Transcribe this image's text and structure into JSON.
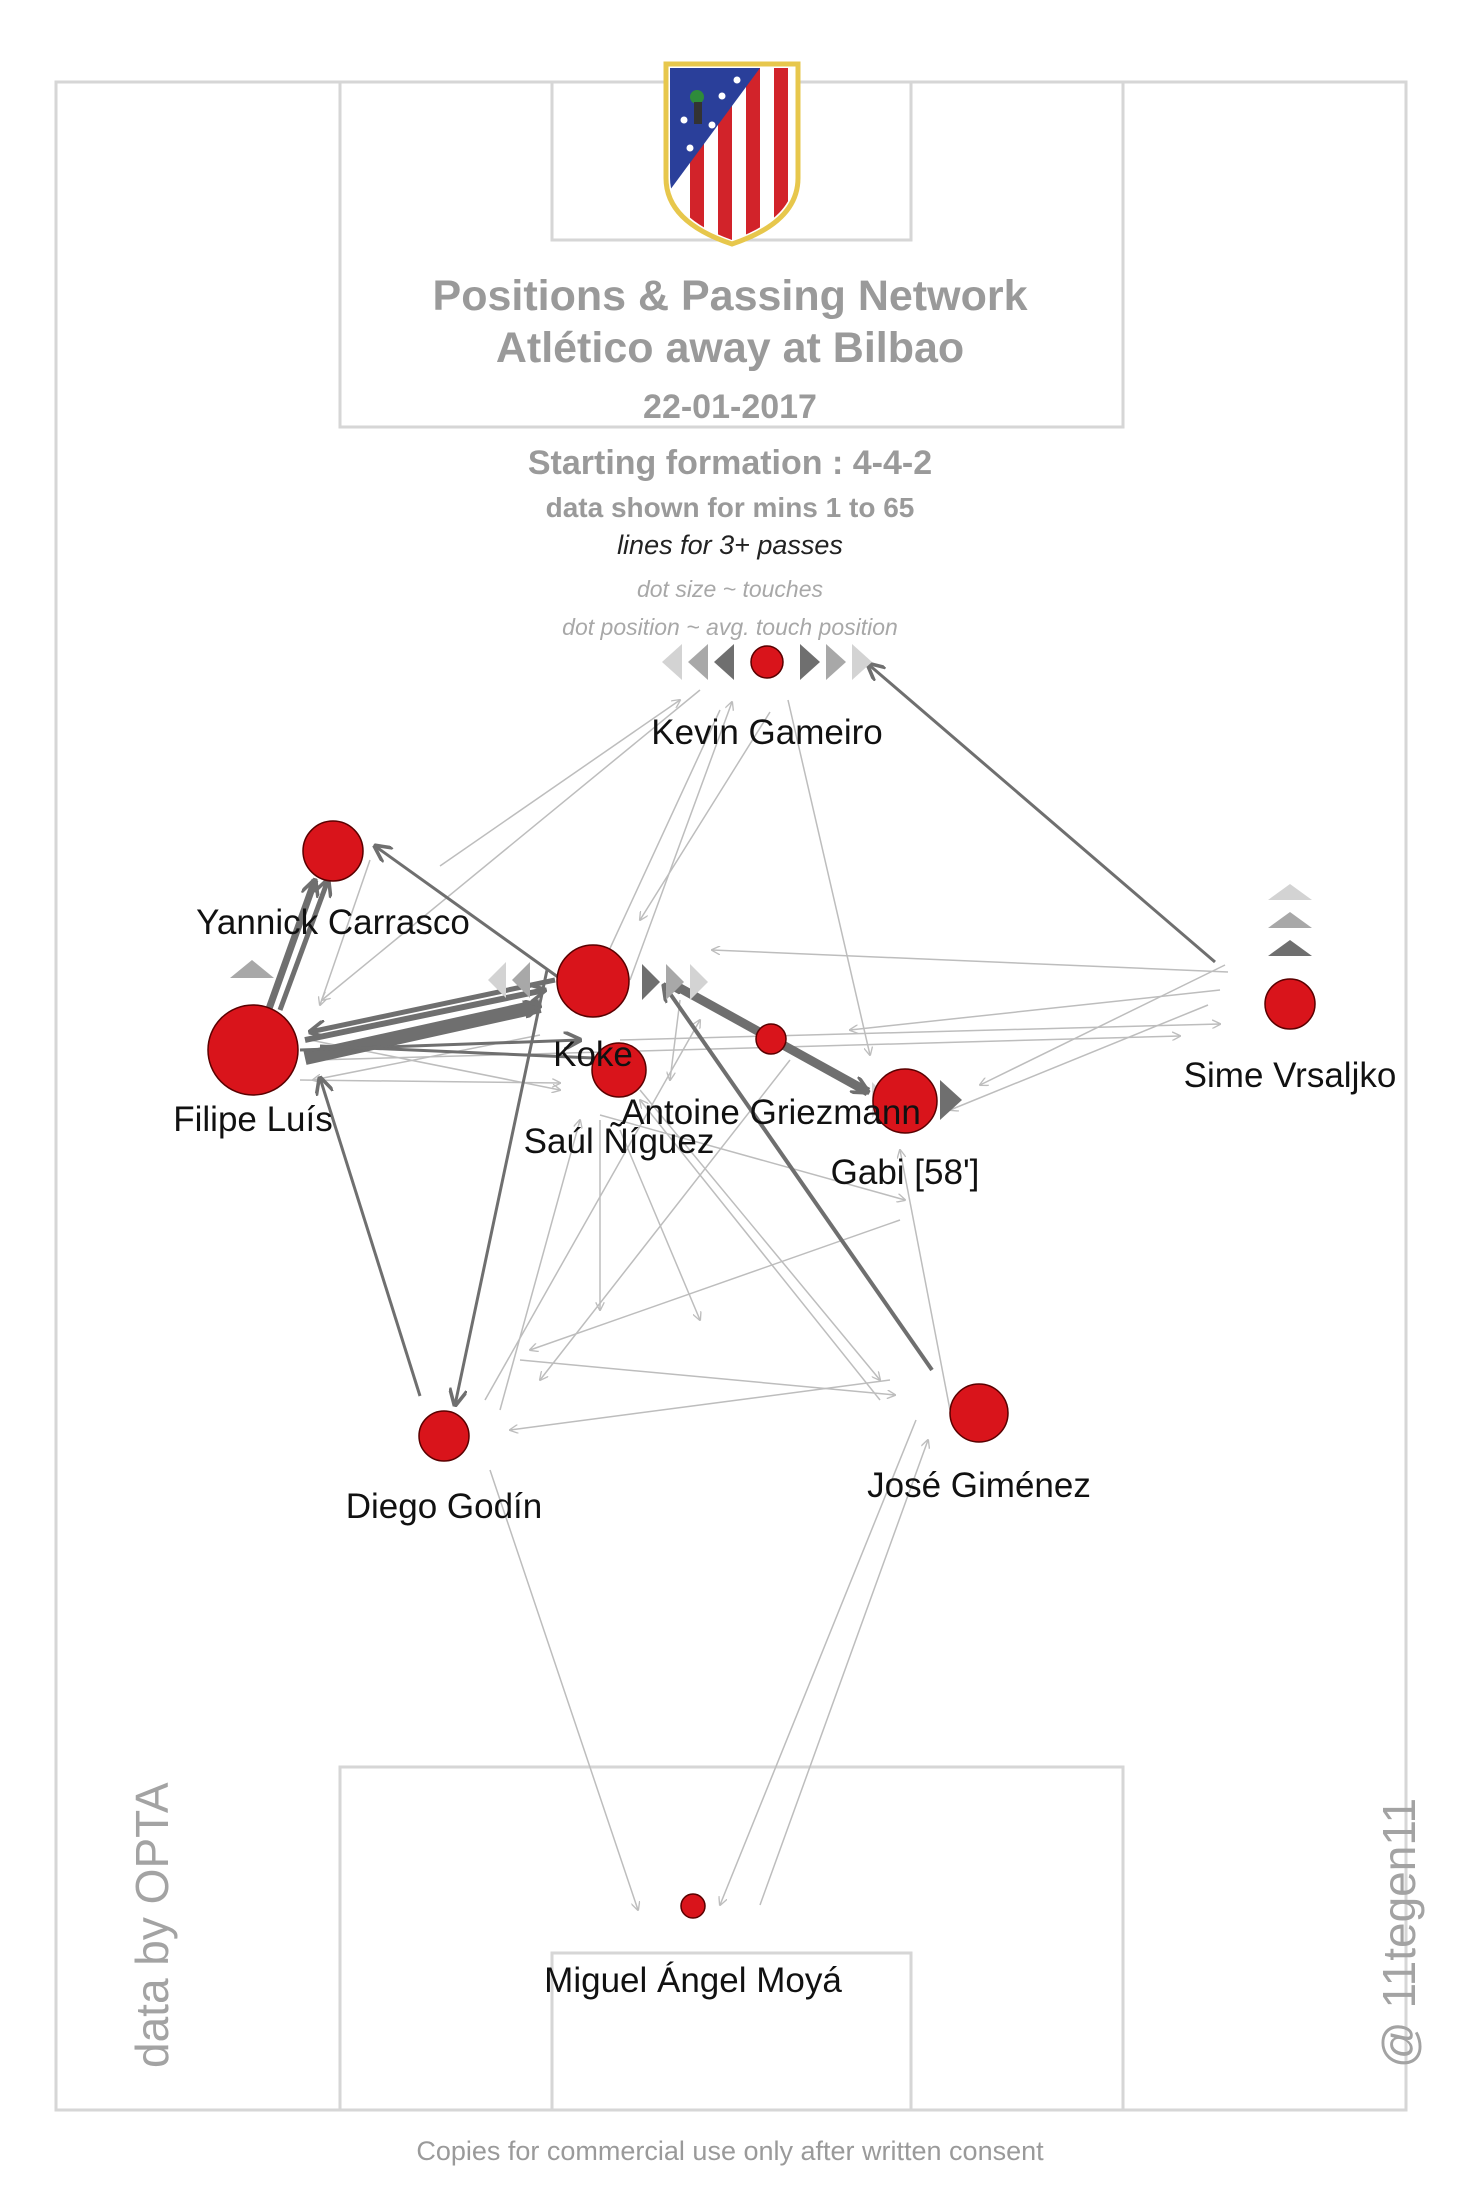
{
  "header": {
    "title_line1": "Positions & Passing Network",
    "title_line2": "Atlético  away at  Bilbao",
    "date": "22-01-2017",
    "formation": "Starting formation : 4-4-2",
    "minutes": "data shown for mins 1 to 65",
    "lines_note": "lines for 3+ passes",
    "dot_size_note": "dot size ~ touches",
    "dot_position_note": "dot position ~ avg. touch position"
  },
  "crest": {
    "name": "atletico-madrid-crest"
  },
  "players": [
    {
      "id": "gameiro",
      "name": "Kevin Gameiro"
    },
    {
      "id": "carrasco",
      "name": "Yannick Carrasco"
    },
    {
      "id": "filipe",
      "name": "Filipe Luís"
    },
    {
      "id": "koke",
      "name": "Koke"
    },
    {
      "id": "saul",
      "name": "Saúl Ñíguez"
    },
    {
      "id": "griezmann",
      "name": "Antoine Griezmann"
    },
    {
      "id": "gabi",
      "name": "Gabi [58']"
    },
    {
      "id": "vrsaljko",
      "name": "Sime Vrsaljko"
    },
    {
      "id": "godin",
      "name": "Diego Godín"
    },
    {
      "id": "gimenez",
      "name": "José Giménez"
    },
    {
      "id": "moya",
      "name": "Miguel Ángel Moyá"
    }
  ],
  "side_notes": {
    "left": "data by OPTA",
    "right": "@ 11tegen11"
  },
  "footer": "Copies for commercial use only after written consent",
  "colors": {
    "dot": "#d9141b",
    "pitch_line": "#d6d6d6",
    "text_grey": "#9a9a9a"
  }
}
